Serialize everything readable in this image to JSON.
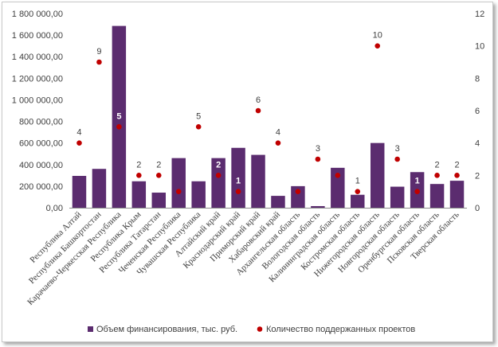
{
  "chart_data": {
    "type": "bar",
    "categories": [
      "Республика Алтай",
      "Республика Башкортостан",
      "Карачаево-Черкесская Республика",
      "Республика Крым",
      "Республика Татарстан",
      "Чеченская Республика",
      "Чувашская Республика",
      "Алтайский край",
      "Краснодарский край",
      "Приморский край",
      "Хабаровский край",
      "Архангельская область",
      "Вологодская область",
      "Калининградская область",
      "Костромская область",
      "Нижегородская область",
      "Новгородская область",
      "Оренбургская область",
      "Псковская область",
      "Тверская область"
    ],
    "series": [
      {
        "name": "Объем финансирования, тыс. руб.",
        "type": "bar",
        "axis": "left",
        "color": "#5b2c6f",
        "values": [
          295000,
          360000,
          1685000,
          245000,
          140000,
          460000,
          245000,
          460000,
          555000,
          490000,
          110000,
          200000,
          15000,
          370000,
          120000,
          600000,
          195000,
          330000,
          220000,
          250000
        ]
      },
      {
        "name": "Количество поддержанных проектов",
        "type": "scatter",
        "axis": "right",
        "color": "#c00000",
        "values": [
          4,
          9,
          5,
          2,
          2,
          1,
          5,
          2,
          1,
          6,
          4,
          1,
          3,
          2,
          1,
          10,
          3,
          1,
          2,
          2
        ],
        "labels": [
          "4",
          "9",
          "5",
          "2",
          "2",
          "",
          "5",
          "2",
          "1",
          "6",
          "4",
          "1",
          "3",
          "2",
          "1",
          "10",
          "3",
          "1",
          "2",
          "2"
        ]
      }
    ],
    "y_left": {
      "ylim": [
        0,
        1800000
      ],
      "ticks": [
        0,
        200000,
        400000,
        600000,
        800000,
        1000000,
        1200000,
        1400000,
        1600000,
        1800000
      ],
      "tick_labels": [
        "0,00",
        "200 000,00",
        "400 000,00",
        "600 000,00",
        "800 000,00",
        "1 000 000,00",
        "1 200 000,00",
        "1 400 000,00",
        "1 600 000,00",
        "1 800 000,00"
      ]
    },
    "y_right": {
      "ylim": [
        0,
        12
      ],
      "ticks": [
        0,
        2,
        4,
        6,
        8,
        10,
        12
      ],
      "tick_labels": [
        "0",
        "2",
        "4",
        "6",
        "8",
        "10",
        "12"
      ]
    },
    "grid": false,
    "legend_position": "bottom"
  }
}
